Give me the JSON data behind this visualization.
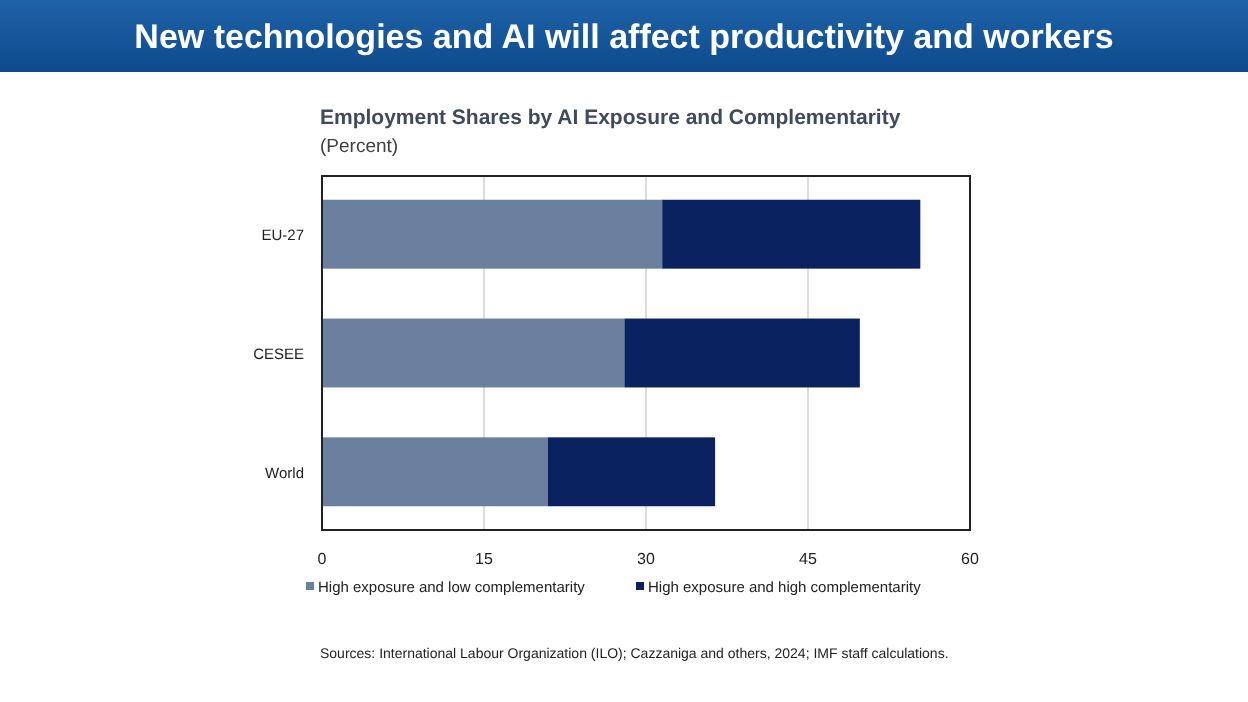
{
  "chart_data": {
    "type": "bar",
    "orientation": "horizontal",
    "stacked": true,
    "title": "New technologies and AI will affect productivity and workers",
    "subtitle": "Employment Shares by AI Exposure and Complementarity",
    "annotations": [
      "(Percent)",
      "Sources: International Labour Organization (ILO); Cazzaniga and others, 2024; IMF staff calculations."
    ],
    "categories": [
      "EU-27",
      "CESEE",
      "World"
    ],
    "series": [
      {
        "name": "High exposure and low complementarity",
        "color": "#6b7f9e",
        "values": [
          31.5,
          28,
          20.9
        ]
      },
      {
        "name": "High exposure and high complementarity",
        "color": "#0b2260",
        "values": [
          23.9,
          21.8,
          15.5
        ]
      }
    ],
    "xlim": [
      0,
      60
    ],
    "xticks": [
      0,
      15,
      30,
      45,
      60
    ],
    "grid": "x",
    "legend": "bottom"
  }
}
